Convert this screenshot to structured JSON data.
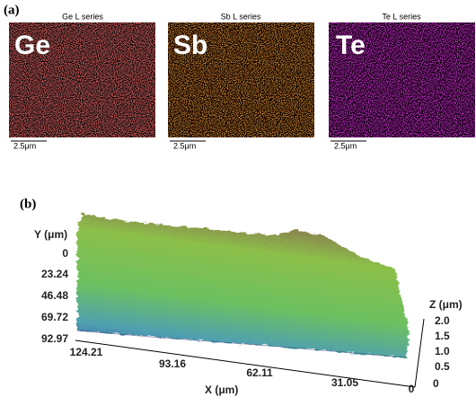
{
  "panel_a": {
    "label": "(a)",
    "maps": [
      {
        "title": "Ge L series",
        "element": "Ge",
        "scale": "2.5μm"
      },
      {
        "title": "Sb L series",
        "element": "Sb",
        "scale": "2.5μm"
      },
      {
        "title": "Te L series",
        "element": "Te",
        "scale": "2.5μm"
      }
    ]
  },
  "panel_b": {
    "label": "(b)",
    "y_axis": {
      "title": "Y (μm)",
      "ticks": [
        "0",
        "23.24",
        "46.48",
        "69.72",
        "92.97"
      ]
    },
    "x_axis": {
      "title": "X (μm)",
      "ticks": [
        "124.21",
        "93.16",
        "62.11",
        "31.05",
        "0"
      ]
    },
    "z_axis": {
      "title": "Z (μm)",
      "ticks": [
        "2.0",
        "1.5",
        "1.0",
        "0.5",
        "0"
      ]
    }
  }
}
